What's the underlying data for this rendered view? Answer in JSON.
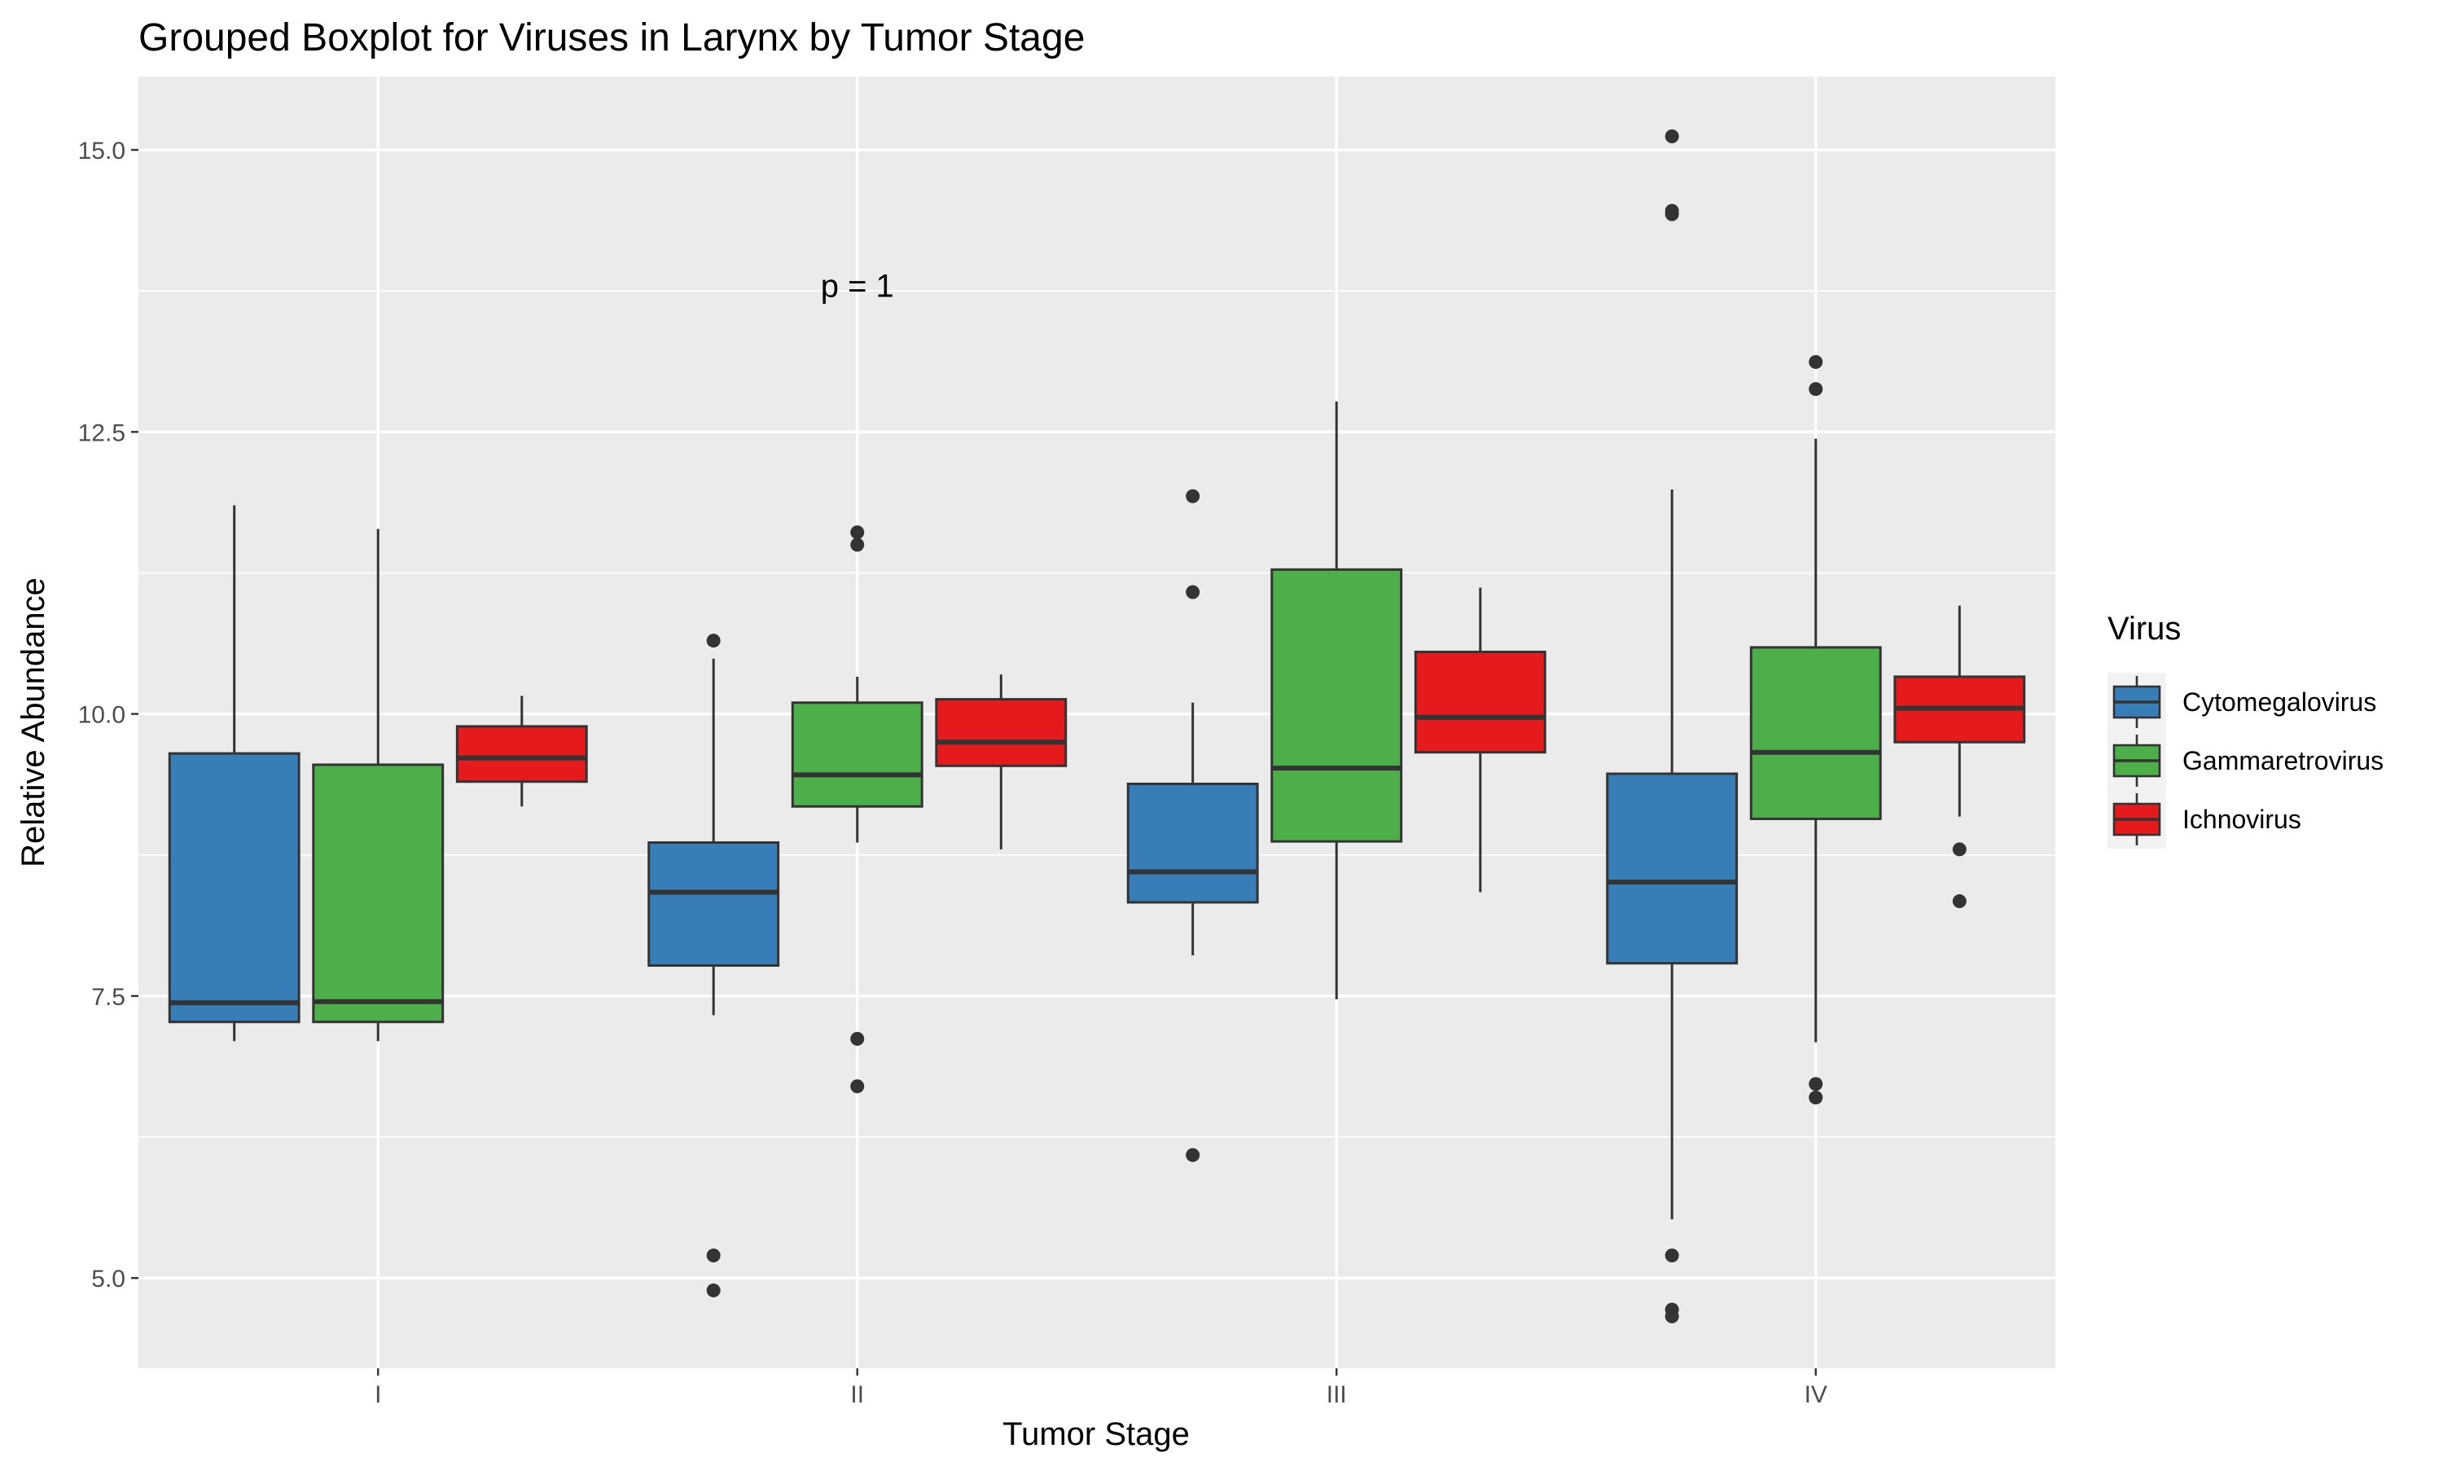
{
  "chart_data": {
    "type": "boxplot",
    "title": "Grouped Boxplot for Viruses in Larynx by Tumor Stage",
    "xlabel": "Tumor Stage",
    "ylabel": "Relative Abundance",
    "categories": [
      "I",
      "II",
      "III",
      "IV"
    ],
    "ylim": [
      4.2,
      15.65
    ],
    "yticks": [
      5.0,
      7.5,
      10.0,
      12.5,
      15.0
    ],
    "ytick_labels": [
      "5.0",
      "7.5",
      "10.0",
      "12.5",
      "15.0"
    ],
    "grid": true,
    "annotation": {
      "text": "p = 1",
      "category": "II",
      "y": 13.8
    },
    "legend": {
      "title": "Virus",
      "placement": "right"
    },
    "series": [
      {
        "name": "Cytomegalovirus",
        "color": "#377EB8",
        "boxes": [
          {
            "category": "I",
            "low": 7.1,
            "q1": 7.27,
            "median": 7.44,
            "q3": 9.65,
            "high": 11.85,
            "outliers": []
          },
          {
            "category": "II",
            "low": 7.33,
            "q1": 7.77,
            "median": 8.42,
            "q3": 8.86,
            "high": 10.49,
            "outliers": [
              10.65,
              5.2,
              4.89
            ]
          },
          {
            "category": "III",
            "low": 7.86,
            "q1": 8.33,
            "median": 8.6,
            "q3": 9.38,
            "high": 10.1,
            "outliers": [
              11.93,
              11.08,
              6.09
            ]
          },
          {
            "category": "IV",
            "low": 5.52,
            "q1": 7.79,
            "median": 8.51,
            "q3": 9.47,
            "high": 11.99,
            "outliers": [
              15.12,
              14.46,
              14.43,
              5.2,
              4.72,
              4.66
            ]
          }
        ]
      },
      {
        "name": "Gammaretrovirus",
        "color": "#4DAF4A",
        "boxes": [
          {
            "category": "I",
            "low": 7.1,
            "q1": 7.27,
            "median": 7.45,
            "q3": 9.55,
            "high": 11.64,
            "outliers": []
          },
          {
            "category": "II",
            "low": 8.86,
            "q1": 9.18,
            "median": 9.46,
            "q3": 10.1,
            "high": 10.33,
            "outliers": [
              11.61,
              11.5,
              7.12,
              6.7
            ]
          },
          {
            "category": "III",
            "low": 7.47,
            "q1": 8.87,
            "median": 9.52,
            "q3": 11.28,
            "high": 12.77,
            "outliers": []
          },
          {
            "category": "IV",
            "low": 7.09,
            "q1": 9.07,
            "median": 9.66,
            "q3": 10.59,
            "high": 12.44,
            "outliers": [
              13.12,
              12.88,
              6.72,
              6.6
            ]
          }
        ]
      },
      {
        "name": "Ichnovirus",
        "color": "#E41A1C",
        "boxes": [
          {
            "category": "I",
            "low": 9.18,
            "q1": 9.4,
            "median": 9.61,
            "q3": 9.89,
            "high": 10.16,
            "outliers": []
          },
          {
            "category": "II",
            "low": 8.8,
            "q1": 9.54,
            "median": 9.75,
            "q3": 10.13,
            "high": 10.35,
            "outliers": []
          },
          {
            "category": "III",
            "low": 8.42,
            "q1": 9.66,
            "median": 9.97,
            "q3": 10.55,
            "high": 11.12,
            "outliers": []
          },
          {
            "category": "IV",
            "low": 9.09,
            "q1": 9.75,
            "median": 10.05,
            "q3": 10.33,
            "high": 10.96,
            "outliers": [
              8.8,
              8.34
            ]
          }
        ]
      }
    ]
  }
}
